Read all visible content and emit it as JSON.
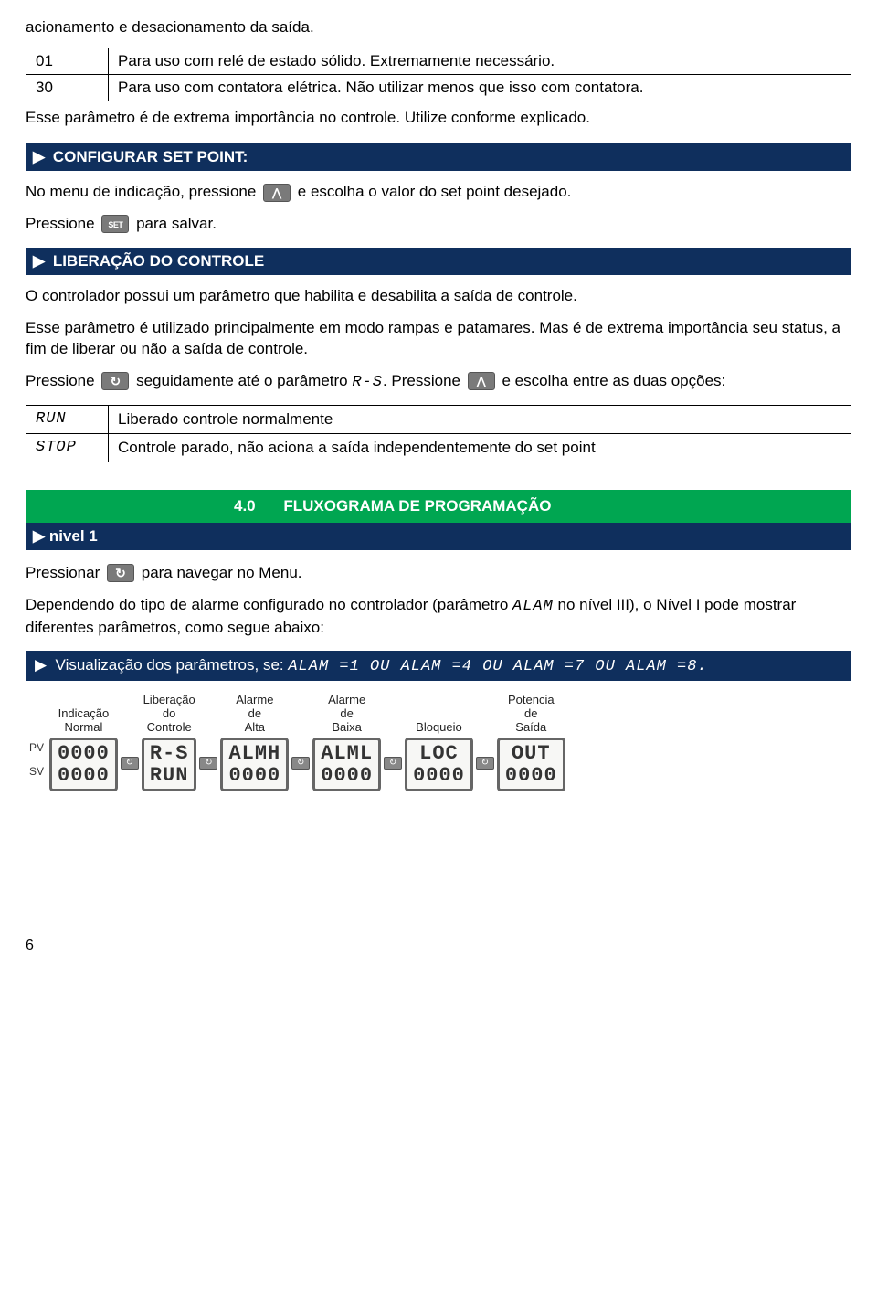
{
  "intro": "acionamento e desacionamento da saída.",
  "param_table": {
    "rows": [
      {
        "code": "01",
        "desc": "Para uso com relé de estado sólido. Extremamente necessário."
      },
      {
        "code": "30",
        "desc": "Para uso com contatora elétrica. Não utilizar menos que isso com contatora."
      }
    ]
  },
  "note_after_table": "Esse parâmetro é de extrema importância no controle. Utilize conforme explicado.",
  "sec_setpoint": {
    "title": "CONFIGURAR SET POINT:",
    "line1_a": "No menu de indicação, pressione",
    "line1_b": "e escolha o valor do set point desejado.",
    "line2_a": "Pressione",
    "line2_b": "para salvar."
  },
  "sec_liberacao": {
    "title": "LIBERAÇÃO DO CONTROLE",
    "p1": "O controlador possui um parâmetro que habilita e desabilita a saída de controle.",
    "p2": "Esse parâmetro é utilizado principalmente em modo rampas e patamares. Mas é de extrema importância seu status, a fim de liberar ou não a saída de controle.",
    "p3_a": "Pressione",
    "p3_b": "seguidamente até o parâmetro",
    "p3_param": "R-S",
    "p3_c": ". Pressione",
    "p3_d": "e escolha entre as duas opções:",
    "options": [
      {
        "code": "RUN",
        "desc": "Liberado controle normalmente"
      },
      {
        "code": "STOP",
        "desc": "Controle parado, não aciona a saída independentemente do set point"
      }
    ]
  },
  "sec_flux": {
    "num": "4.0",
    "title": "FLUXOGRAMA DE PROGRAMAÇÃO",
    "sub": "nivel 1",
    "line_a": "Pressionar",
    "line_b": "para navegar no Menu.",
    "p2_a": "Dependendo do tipo de alarme configurado no controlador (parâmetro ",
    "p2_param": "ALAM",
    "p2_b": " no nível III), o Nível I pode mostrar diferentes parâmetros, como segue abaixo:"
  },
  "vis_header": {
    "pre": "Visualização dos parâmetros, se: ",
    "cond": "ALAM =1 OU  ALAM =4 OU ALAM =7 OU ALAM =8."
  },
  "flow": {
    "pv_label": "PV",
    "sv_label": "SV",
    "nodes": [
      {
        "label": "Indicação\nNormal",
        "pv": "0000",
        "sv": "0000"
      },
      {
        "label": "Liberação\ndo\nControle",
        "pv": "R-S",
        "sv": "RUN"
      },
      {
        "label": "Alarme\nde\nAlta",
        "pv": "ALMH",
        "sv": "0000"
      },
      {
        "label": "Alarme\nde\nBaixa",
        "pv": "ALML",
        "sv": "0000"
      },
      {
        "label": "Bloqueio",
        "pv": "LOC",
        "sv": "0000"
      },
      {
        "label": "Potencia\nde\nSaída",
        "pv": "OUT",
        "sv": "0000"
      }
    ]
  },
  "page_number": "6",
  "colors": {
    "header_bg": "#0f2f5d",
    "green_bg": "#00a651"
  }
}
